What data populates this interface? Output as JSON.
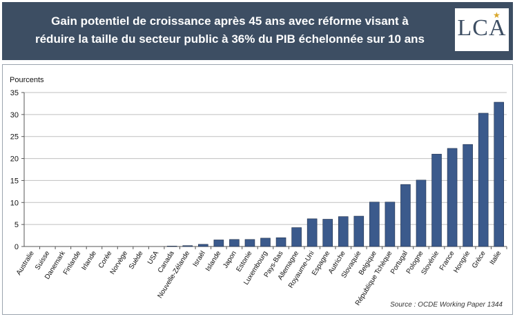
{
  "header": {
    "title_line1": "Gain potentiel de croissance après 45 ans avec réforme visant à",
    "title_line2": "réduire la taille du secteur public à 36% du PIB échelonnée sur 10 ans",
    "logo_text": "LCA",
    "logo_star": "★"
  },
  "colors": {
    "header_bg": "#3d4e63",
    "bar": "#3b5a8c",
    "logo_accent": "#d9a72a"
  },
  "chart_data": {
    "type": "bar",
    "ylabel": "Pourcents",
    "ylim": [
      0,
      35
    ],
    "yticks": [
      0,
      5,
      10,
      15,
      20,
      25,
      30,
      35
    ],
    "categories": [
      "Australie",
      "Suisse",
      "Danemark",
      "Finlande",
      "Irlande",
      "Corée",
      "Norvège",
      "Suède",
      "USA",
      "Canada",
      "Nouvelle-Zélande",
      "Israël",
      "Islande",
      "Japon",
      "Estonie",
      "Luxembourg",
      "Pays-Bas",
      "Allemagne",
      "Royaume-Uni",
      "Espagne",
      "Autriche",
      "Slovaquie",
      "Belgique",
      "République Tchèque",
      "Portugal",
      "Pologne",
      "Slovénie",
      "France",
      "Hongrie",
      "Grèce",
      "Italie"
    ],
    "values": [
      0,
      0,
      0,
      0,
      0,
      0,
      0,
      0,
      0,
      0.1,
      0.2,
      0.5,
      1.5,
      1.6,
      1.6,
      1.9,
      2.0,
      4.3,
      6.3,
      6.2,
      6.8,
      6.9,
      10.1,
      10.1,
      14.1,
      15.1,
      21.0,
      22.3,
      23.2,
      30.3,
      32.8
    ],
    "grid": true,
    "legend": "none"
  },
  "source": "Source : OCDE Working Paper 1344"
}
